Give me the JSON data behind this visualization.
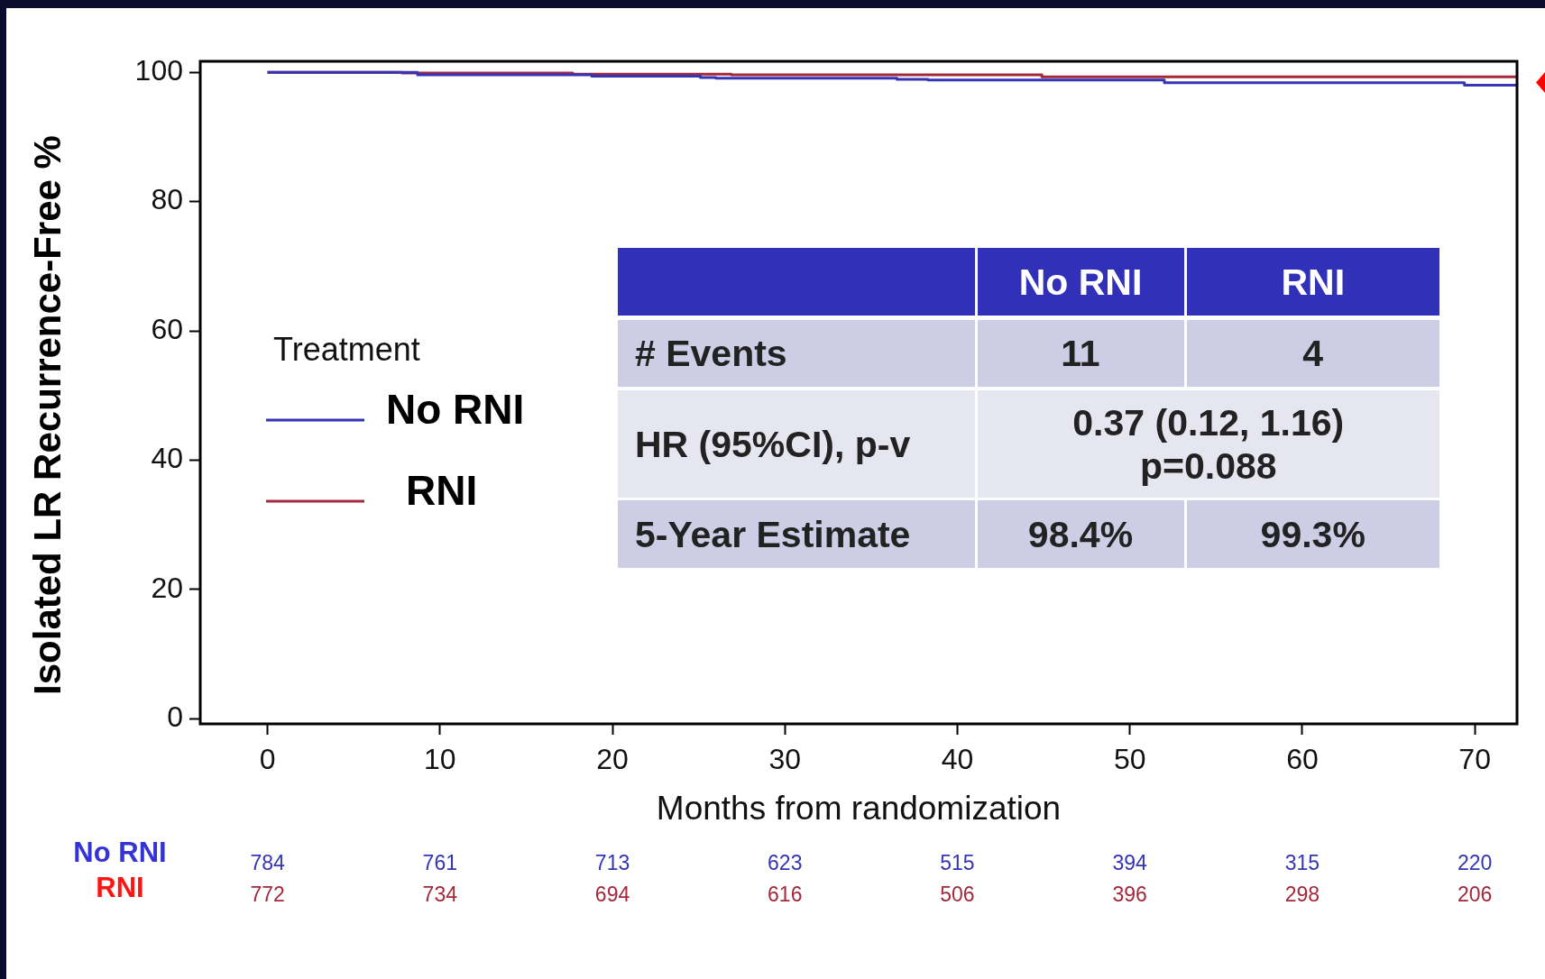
{
  "chart_data": {
    "type": "step",
    "xlabel": "Months from randomization",
    "ylabel": "Isolated LR Recurrence-Free %",
    "legend_title": "Treatment",
    "series": [
      {
        "name": "No RNI",
        "color": "#3434b4",
        "x": [
          0,
          8.7,
          18.8,
          25.1,
          26.0,
          36.5,
          38.3,
          52.0,
          69.4,
          72.4
        ],
        "values": [
          100,
          99.6,
          99.4,
          99.2,
          99.1,
          98.9,
          98.8,
          98.4,
          98.0,
          98.0
        ]
      },
      {
        "name": "RNI",
        "color": "#a3283c",
        "x": [
          0,
          7.8,
          17.7,
          26.9,
          44.9,
          72.4
        ],
        "values": [
          100,
          99.9,
          99.7,
          99.6,
          99.3,
          99.3
        ]
      }
    ],
    "xlim": [
      -3.9,
      72.45
    ],
    "ylim": [
      -0.8,
      101.7
    ],
    "xticks": [
      0,
      10,
      20,
      30,
      40,
      50,
      60,
      70
    ],
    "yticks": [
      0,
      20,
      40,
      60,
      80,
      100
    ],
    "grid": false,
    "legend": "left",
    "marker": "none",
    "line_style": "solid",
    "annotations": [
      "No RNI",
      "RNI",
      "# Events",
      "11",
      "4",
      "HR (95%CI), p-v",
      "0.37 (0.12, 1.16)",
      "p=0.088",
      "5-Year Estimate",
      "98.4%",
      "99.3%",
      "No RNI",
      "RNI",
      "784",
      "761",
      "713",
      "623",
      "515",
      "394",
      "315",
      "220",
      "772",
      "734",
      "694",
      "616",
      "506",
      "396",
      "298",
      "206"
    ]
  }
}
